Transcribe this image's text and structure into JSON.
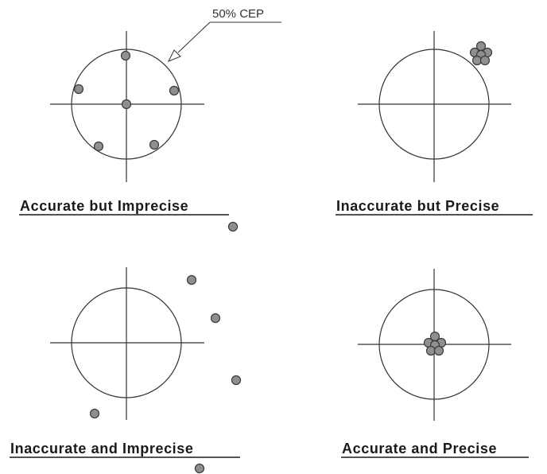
{
  "panels": [
    {
      "label": "Accurate but Imprecise"
    },
    {
      "label": "Inaccurate but Precise"
    },
    {
      "label": "Inaccurate and Imprecise"
    },
    {
      "label": "Accurate and Precise"
    }
  ],
  "callout": {
    "label": "50% CEP"
  },
  "colors": {
    "shot_fill": "#8f8f8f",
    "shot_stroke": "#3a3a3a",
    "lines": "#333333"
  }
}
